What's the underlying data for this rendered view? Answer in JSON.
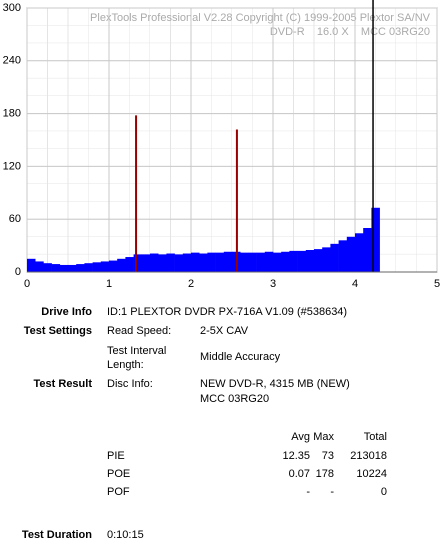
{
  "chart_data": {
    "type": "bar",
    "watermark": [
      "PlexTools Professional V2.28 Copyright (C) 1999-2005 Plextor SA/NV",
      "DVD-R    16.0 X    MCC 03RG20"
    ],
    "series": [
      {
        "name": "PIE",
        "color": "#0000ff",
        "x": [
          0,
          0.1,
          0.2,
          0.3,
          0.4,
          0.5,
          0.6,
          0.7,
          0.8,
          0.9,
          1.0,
          1.1,
          1.2,
          1.3,
          1.4,
          1.5,
          1.6,
          1.7,
          1.8,
          1.9,
          2.0,
          2.1,
          2.2,
          2.3,
          2.4,
          2.5,
          2.6,
          2.7,
          2.8,
          2.9,
          3.0,
          3.1,
          3.2,
          3.3,
          3.4,
          3.5,
          3.6,
          3.7,
          3.8,
          3.9,
          4.0,
          4.1,
          4.2
        ],
        "values": [
          15,
          12,
          10,
          9,
          8,
          8,
          9,
          10,
          11,
          12,
          13,
          15,
          17,
          20,
          20,
          21,
          20,
          21,
          20,
          21,
          22,
          21,
          22,
          22,
          23,
          23,
          22,
          22,
          22,
          23,
          22,
          23,
          24,
          24,
          25,
          26,
          28,
          32,
          36,
          40,
          44,
          50,
          73
        ]
      },
      {
        "name": "POE",
        "color": "#990000",
        "x": [
          1.33,
          2.56
        ],
        "values": [
          178,
          162
        ]
      }
    ],
    "end_x": 4.22,
    "xlim": [
      0,
      5
    ],
    "xticks": [
      0,
      1,
      2,
      3,
      4,
      5
    ],
    "ylim": [
      0,
      300
    ],
    "yticks": [
      0,
      60,
      120,
      180,
      240,
      300
    ],
    "grid": true
  },
  "report": {
    "drive_info": {
      "label": "Drive Info",
      "value": "ID:1 PLEXTOR DVDR PX-716A V1.09 (#538634)"
    },
    "test_settings": {
      "label": "Test Settings",
      "items": [
        [
          "Read Speed:",
          "2-5X CAV"
        ],
        [
          "Test Interval Length:",
          "Middle Accuracy"
        ]
      ]
    },
    "test_result": {
      "label": "Test Result",
      "key": "Disc Info:",
      "lines": [
        "NEW DVD-R, 4315 MB (NEW)",
        "MCC 03RG20"
      ]
    },
    "stats": {
      "header": [
        "Avg",
        "Max",
        "Total"
      ],
      "rows": [
        [
          "PIE",
          "12.35",
          "73",
          "213018"
        ],
        [
          "POE",
          "0.07",
          "178",
          "10224"
        ],
        [
          "POF",
          "-",
          "-",
          "0"
        ]
      ]
    },
    "test_duration": {
      "label": "Test Duration",
      "value": "0:10:15"
    }
  }
}
